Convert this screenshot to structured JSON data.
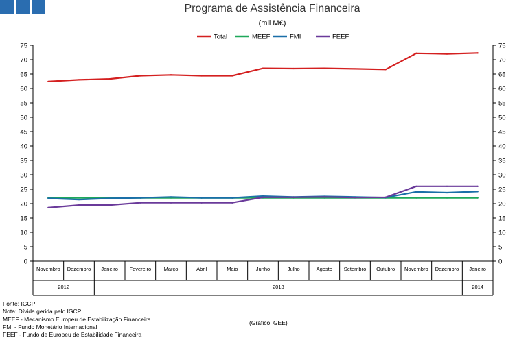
{
  "header": {
    "title": "Programa de Assistência Financeira",
    "subtitle": "(mil M€)"
  },
  "footer": {
    "source": "Fonte: IGCP",
    "note": "Nota: Dívida gerida pelo IGCP",
    "meef_def": "MEEF - Mecanismo Europeu de Estabilização Financeira",
    "fmi_def": "FMI - Fundo Monetário Internacional",
    "feef_def": "FEEF - Fundo de Europeu de Estabilidade Financeira",
    "credit": "(Gráfico: GEE)"
  },
  "colors": {
    "Total": "#d42020",
    "MEEF": "#1fa85a",
    "FMI": "#1a6fa8",
    "FEEF": "#6a3a9a",
    "logo": "#2a6db0"
  },
  "chart_data": {
    "type": "line",
    "title": "Programa de Assistência Financeira",
    "subtitle": "(mil M€)",
    "xlabel": "",
    "ylabel": "",
    "ylim": [
      0,
      75
    ],
    "yticks": [
      0,
      5,
      10,
      15,
      20,
      25,
      30,
      35,
      40,
      45,
      50,
      55,
      60,
      65,
      70,
      75
    ],
    "grid": false,
    "legend": "top-center",
    "categories": [
      "Novembro",
      "Dezembro",
      "Janeiro",
      "Fevereiro",
      "Março",
      "Abril",
      "Maio",
      "Junho",
      "Julho",
      "Agosto",
      "Setembro",
      "Outubro",
      "Novembro",
      "Dezembro",
      "Janeiro"
    ],
    "years": [
      {
        "label": "2012",
        "start": 0,
        "end": 1
      },
      {
        "label": "2013",
        "start": 2,
        "end": 13
      },
      {
        "label": "2014",
        "start": 14,
        "end": 14
      }
    ],
    "series": [
      {
        "name": "Total",
        "values": [
          62.4,
          63.0,
          63.3,
          64.4,
          64.7,
          64.4,
          64.4,
          67.0,
          66.9,
          67.0,
          66.8,
          66.6,
          72.2,
          72.0,
          72.3
        ]
      },
      {
        "name": "MEEF",
        "values": [
          22.0,
          22.0,
          22.0,
          22.0,
          22.0,
          22.0,
          22.0,
          22.0,
          22.0,
          22.0,
          22.0,
          22.0,
          22.0,
          22.0,
          22.0
        ]
      },
      {
        "name": "FMI",
        "values": [
          21.8,
          21.4,
          21.8,
          22.0,
          22.3,
          22.0,
          22.0,
          22.6,
          22.3,
          22.5,
          22.3,
          22.1,
          24.1,
          23.8,
          24.2
        ]
      },
      {
        "name": "FEEF",
        "values": [
          18.6,
          19.5,
          19.5,
          20.3,
          20.3,
          20.3,
          20.3,
          22.2,
          22.2,
          22.3,
          22.1,
          22.2,
          26.0,
          26.0,
          26.0
        ]
      }
    ]
  }
}
